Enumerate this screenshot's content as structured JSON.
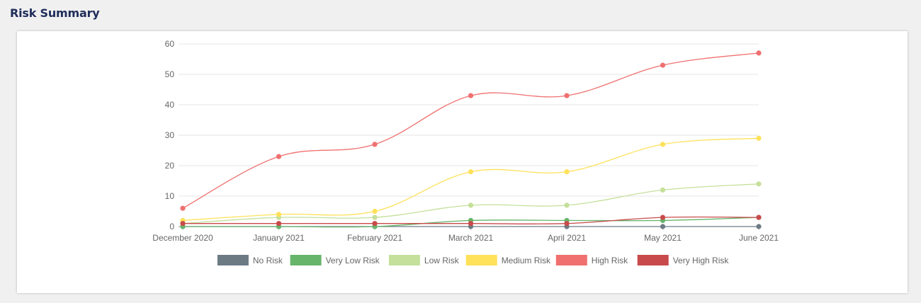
{
  "page": {
    "title": "Risk Summary"
  },
  "chart_data": {
    "type": "line",
    "title": "",
    "xlabel": "",
    "ylabel": "",
    "ylim": [
      0,
      60
    ],
    "y_ticks": [
      0,
      10,
      20,
      30,
      40,
      50,
      60
    ],
    "grid": true,
    "legend_position": "bottom",
    "categories": [
      "December 2020",
      "January 2021",
      "February 2021",
      "March 2021",
      "April 2021",
      "May 2021",
      "June 2021"
    ],
    "series": [
      {
        "name": "No Risk",
        "color": "#6c7a83",
        "values": [
          0,
          0,
          0,
          0,
          0,
          0,
          0
        ]
      },
      {
        "name": "Very Low Risk",
        "color": "#66b56a",
        "values": [
          0,
          0,
          0,
          2,
          2,
          2,
          3
        ]
      },
      {
        "name": "Low Risk",
        "color": "#c5e09b",
        "values": [
          1,
          3,
          3,
          7,
          7,
          12,
          14
        ]
      },
      {
        "name": "Medium Risk",
        "color": "#ffe15a",
        "values": [
          2,
          4,
          5,
          18,
          18,
          27,
          29
        ]
      },
      {
        "name": "High Risk",
        "color": "#f07070",
        "values": [
          6,
          23,
          27,
          43,
          43,
          53,
          57
        ]
      },
      {
        "name": "Very High Risk",
        "color": "#c94a4a",
        "values": [
          1,
          1,
          1,
          1,
          1,
          3,
          3
        ]
      }
    ]
  }
}
